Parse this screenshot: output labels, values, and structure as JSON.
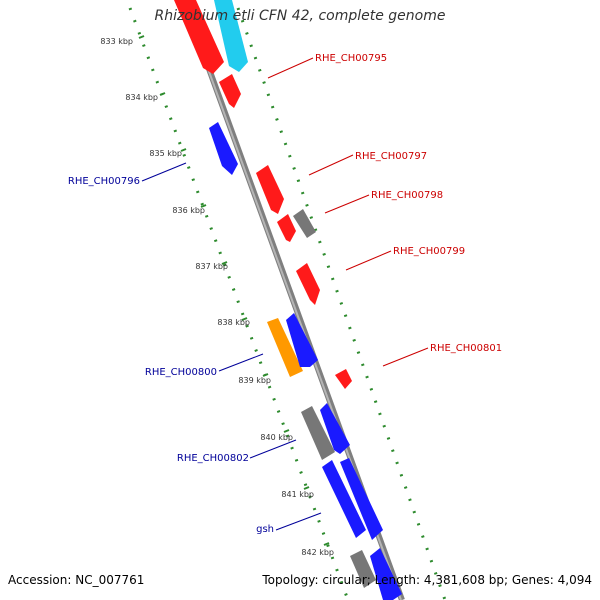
{
  "title": "Rhizobium etli CFN 42, complete genome",
  "footer": {
    "accession": "Accession: NC_007761",
    "info": "Topology: circular; Length: 4,381,608 bp; Genes: 4,094"
  },
  "colors": {
    "backbone": "#888888",
    "scale": "#2e8b2e",
    "plus_strand_label": "#cc0000",
    "minus_strand_label": "#000099",
    "red": "#ff1a1a",
    "blue": "#1a1aff",
    "cyan": "#22ccee",
    "gray": "#777777",
    "orange": "#ff9900"
  },
  "kbp_ticks": [
    "833 kbp",
    "834 kbp",
    "835 kbp",
    "836 kbp",
    "837 kbp",
    "838 kbp",
    "839 kbp",
    "840 kbp",
    "841 kbp",
    "842 kbp"
  ],
  "gene_labels": [
    {
      "id": "RHE_CH00795",
      "strand": "+"
    },
    {
      "id": "RHE_CH00796",
      "strand": "-"
    },
    {
      "id": "RHE_CH00797",
      "strand": "+"
    },
    {
      "id": "RHE_CH00798",
      "strand": "+"
    },
    {
      "id": "RHE_CH00799",
      "strand": "+"
    },
    {
      "id": "RHE_CH00800",
      "strand": "-"
    },
    {
      "id": "RHE_CH00801",
      "strand": "+"
    },
    {
      "id": "RHE_CH00802",
      "strand": "-"
    },
    {
      "id": "gsh",
      "strand": "-"
    }
  ]
}
